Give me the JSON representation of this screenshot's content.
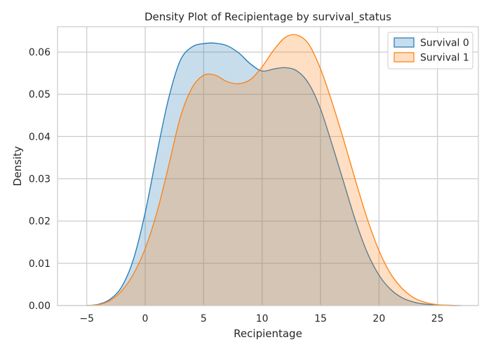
{
  "chart_data": {
    "type": "area",
    "title": "Density Plot of Recipientage by survival_status",
    "xlabel": "Recipientage",
    "ylabel": "Density",
    "xlim": [
      -7.5,
      28.5
    ],
    "ylim": [
      0,
      0.066
    ],
    "xticks": [
      -5,
      0,
      5,
      10,
      15,
      20,
      25
    ],
    "yticks": [
      0.0,
      0.01,
      0.02,
      0.03,
      0.04,
      0.05,
      0.06
    ],
    "ytick_labels": [
      "0.00",
      "0.01",
      "0.02",
      "0.03",
      "0.04",
      "0.05",
      "0.06"
    ],
    "grid": true,
    "legend_position": "top-right",
    "series": [
      {
        "name": "Survival 0",
        "color": "#1f77b4",
        "x": [
          -5,
          -4,
          -3,
          -2,
          -1,
          0,
          1,
          2,
          3,
          4,
          5,
          6,
          7,
          8,
          9,
          10,
          11,
          12,
          13,
          14,
          15,
          16,
          17,
          18,
          19,
          20,
          21,
          22,
          23,
          24,
          25,
          26,
          27
        ],
        "y": [
          0.0,
          0.0003,
          0.0015,
          0.0045,
          0.011,
          0.022,
          0.036,
          0.049,
          0.058,
          0.0612,
          0.062,
          0.0621,
          0.0615,
          0.0598,
          0.0572,
          0.0555,
          0.056,
          0.0563,
          0.0555,
          0.0525,
          0.0465,
          0.038,
          0.029,
          0.02,
          0.0125,
          0.0072,
          0.0038,
          0.0018,
          0.0008,
          0.0003,
          0.0001,
          0.0,
          0.0
        ]
      },
      {
        "name": "Survival 1",
        "color": "#ff7f0e",
        "x": [
          -5,
          -4,
          -3,
          -2,
          -1,
          0,
          1,
          2,
          3,
          4,
          5,
          6,
          7,
          8,
          9,
          10,
          11,
          12,
          13,
          14,
          15,
          16,
          17,
          18,
          19,
          20,
          21,
          22,
          23,
          24,
          25,
          26,
          27
        ],
        "y": [
          0.0,
          0.0002,
          0.0012,
          0.0035,
          0.0075,
          0.0135,
          0.022,
          0.033,
          0.0445,
          0.0515,
          0.0545,
          0.0545,
          0.053,
          0.0525,
          0.0535,
          0.0565,
          0.0605,
          0.0635,
          0.064,
          0.0618,
          0.056,
          0.048,
          0.039,
          0.0295,
          0.0205,
          0.013,
          0.0075,
          0.004,
          0.0018,
          0.0007,
          0.0002,
          0.0001,
          0.0
        ]
      }
    ]
  }
}
